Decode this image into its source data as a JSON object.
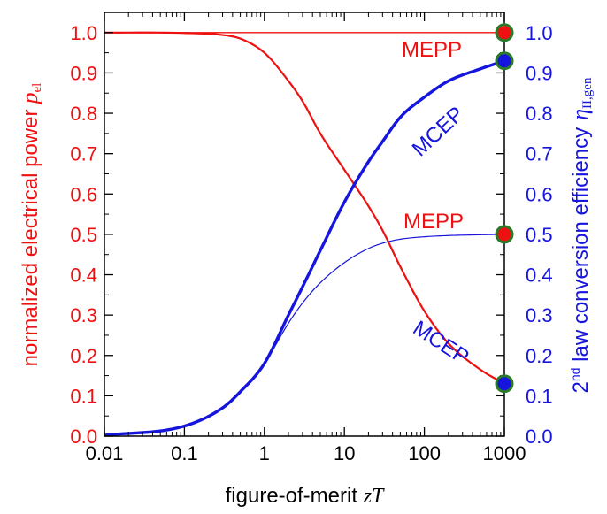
{
  "chart_data": {
    "type": "line",
    "xlabel_prefix": "figure-of-merit ",
    "xlabel_var": "zT",
    "x_scale": "log",
    "xlim": [
      0.01,
      1000
    ],
    "x_ticks": [
      0.01,
      0.1,
      1,
      10,
      100,
      1000
    ],
    "x_tick_labels": [
      "0.01",
      "0.1",
      "1",
      "10",
      "100",
      "1000"
    ],
    "ylim": [
      0,
      1.05
    ],
    "y_ticks": [
      0.0,
      0.1,
      0.2,
      0.3,
      0.4,
      0.5,
      0.6,
      0.7,
      0.8,
      0.9,
      1.0
    ],
    "y_tick_labels": [
      "0.0",
      "0.1",
      "0.2",
      "0.3",
      "0.4",
      "0.5",
      "0.6",
      "0.7",
      "0.8",
      "0.9",
      "1.0"
    ],
    "ylabel_left": "normalized electrical power",
    "ylabel_left_sym": "p",
    "ylabel_left_sub": "el",
    "ylabel_right_prefix": "2",
    "ylabel_right_sup": "nd",
    "ylabel_right_text": " law conversion efficiency",
    "ylabel_right_sym": "η",
    "ylabel_right_sub": "II,gen",
    "colors": {
      "power": "#ee1111",
      "efficiency": "#1515dd",
      "marker_edge": "#2a7a2a"
    },
    "series": [
      {
        "axis": "left",
        "x": [
          0.01,
          0.1,
          0.3,
          0.5,
          1,
          2,
          3,
          5,
          10,
          20,
          30,
          50,
          100,
          200,
          500,
          1000
        ],
        "y": [
          1.0,
          0.999,
          0.994,
          0.985,
          0.95,
          0.88,
          0.83,
          0.75,
          0.66,
          0.57,
          0.51,
          0.42,
          0.31,
          0.23,
          0.165,
          0.13
        ]
      },
      {
        "axis": "left",
        "x": [
          0.01,
          0.1,
          0.3,
          1,
          10,
          100,
          1000
        ],
        "y": [
          1.0,
          1.0,
          1.0,
          1.0,
          1.0,
          1.0,
          1.0
        ]
      },
      {
        "axis": "right",
        "x": [
          0.01,
          0.1,
          0.3,
          0.5,
          1,
          2,
          3,
          5,
          10,
          20,
          30,
          50,
          100,
          200,
          500,
          1000
        ],
        "y": [
          0.002,
          0.025,
          0.07,
          0.11,
          0.18,
          0.3,
          0.37,
          0.46,
          0.58,
          0.68,
          0.73,
          0.79,
          0.84,
          0.88,
          0.91,
          0.93
        ]
      },
      {
        "axis": "right",
        "x": [
          0.01,
          0.1,
          0.3,
          0.5,
          1,
          2,
          3,
          5,
          10,
          20,
          30,
          50,
          100,
          200,
          500,
          1000
        ],
        "y": [
          0.002,
          0.025,
          0.07,
          0.11,
          0.18,
          0.28,
          0.33,
          0.38,
          0.43,
          0.465,
          0.478,
          0.488,
          0.494,
          0.497,
          0.499,
          0.5
        ]
      }
    ],
    "annotations": [
      {
        "text": "MEPP",
        "color": "power"
      },
      {
        "text": "MEPP",
        "color": "power"
      },
      {
        "text": "MCEP",
        "color": "efficiency"
      },
      {
        "text": "MCEP",
        "color": "efficiency"
      }
    ],
    "markers": [
      {
        "x": 1000,
        "y": 1.0,
        "fill": "power"
      },
      {
        "x": 1000,
        "y": 0.5,
        "fill": "power"
      },
      {
        "x": 1000,
        "y": 0.93,
        "fill": "efficiency"
      },
      {
        "x": 1000,
        "y": 0.13,
        "fill": "efficiency"
      }
    ]
  }
}
